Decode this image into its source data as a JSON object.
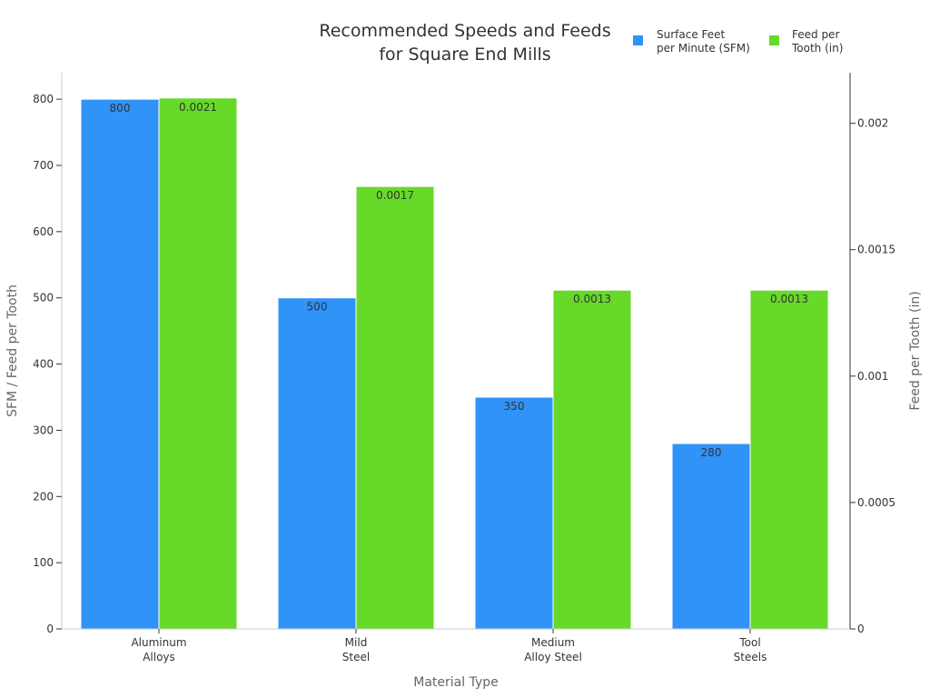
{
  "chart_data": {
    "type": "bar",
    "title": [
      "Recommended Speeds and Feeds",
      "for Square End Mills"
    ],
    "categories": [
      [
        "Aluminum",
        "Alloys"
      ],
      [
        "Mild",
        "Steel"
      ],
      [
        "Medium",
        "Alloy Steel"
      ],
      [
        "Tool",
        "Steels"
      ]
    ],
    "xlabel": "Material Type",
    "ylabel": "SFM / Feed per Tooth",
    "y2label": "Feed per Tooth (in)",
    "ylim": [
      0,
      840
    ],
    "y2lim": [
      0,
      0.0022
    ],
    "yticks": [
      0,
      100,
      200,
      300,
      400,
      500,
      600,
      700,
      800
    ],
    "y2ticks": [
      {
        "value": 0,
        "label": "0"
      },
      {
        "value": 0.0005,
        "label": "0.0005"
      },
      {
        "value": 0.001,
        "label": "0.001"
      },
      {
        "value": 0.0015,
        "label": "0.0015"
      },
      {
        "value": 0.002,
        "label": "0.002"
      }
    ],
    "legend_position": "top-right",
    "grid": false,
    "series": [
      {
        "name": [
          "Surface Feet",
          "per Minute (SFM)"
        ],
        "axis": "left",
        "color": "#2f93f8",
        "values": [
          800,
          500,
          350,
          280
        ],
        "labels": [
          "800",
          "500",
          "350",
          "280"
        ]
      },
      {
        "name": [
          "Feed per",
          "Tooth (in)"
        ],
        "axis": "right",
        "color": "#66d929",
        "values": [
          0.0021,
          0.00175,
          0.00134,
          0.00134
        ],
        "labels": [
          "0.0021",
          "0.0017",
          "0.0013",
          "0.0013"
        ]
      }
    ]
  }
}
